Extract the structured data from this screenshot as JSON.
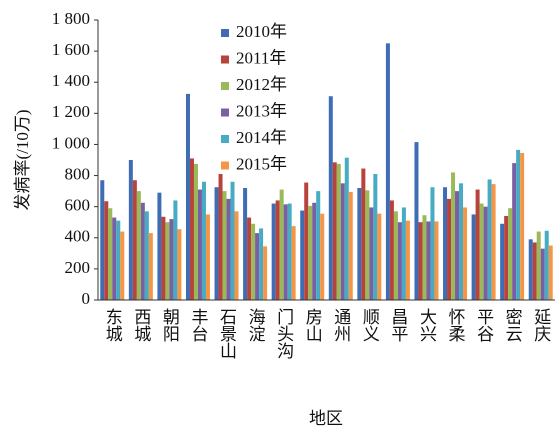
{
  "chart_data": {
    "type": "bar",
    "x_label": "地区",
    "y_label": "发病率(/10万)",
    "categories": [
      "东城",
      "西城",
      "朝阳",
      "丰台",
      "石景山",
      "海淀",
      "门头沟",
      "房山",
      "通州",
      "顺义",
      "昌平",
      "大兴",
      "怀柔",
      "平谷",
      "密云",
      "延庆"
    ],
    "series": [
      {
        "name": "2010年",
        "color": "#3f6db3",
        "values": [
          770,
          900,
          690,
          1325,
          725,
          720,
          620,
          575,
          1310,
          720,
          1650,
          1015,
          725,
          550,
          490,
          390
        ]
      },
      {
        "name": "2011年",
        "color": "#b8423c",
        "values": [
          635,
          770,
          535,
          910,
          810,
          530,
          640,
          755,
          885,
          845,
          640,
          500,
          650,
          710,
          540,
          370
        ]
      },
      {
        "name": "2012年",
        "color": "#9aba58",
        "values": [
          590,
          700,
          500,
          875,
          700,
          490,
          710,
          605,
          875,
          705,
          570,
          545,
          820,
          620,
          590,
          440
        ]
      },
      {
        "name": "2013年",
        "color": "#7a5fa3",
        "values": [
          530,
          625,
          520,
          710,
          650,
          430,
          615,
          625,
          750,
          595,
          500,
          505,
          700,
          600,
          880,
          330
        ]
      },
      {
        "name": "2014年",
        "color": "#47abc4",
        "values": [
          510,
          570,
          640,
          760,
          760,
          460,
          620,
          700,
          915,
          810,
          595,
          725,
          750,
          775,
          965,
          445
        ]
      },
      {
        "name": "2015年",
        "color": "#f59646",
        "values": [
          440,
          430,
          455,
          550,
          570,
          345,
          475,
          555,
          695,
          555,
          510,
          505,
          595,
          745,
          945,
          350
        ]
      }
    ],
    "ylim": [
      0,
      1800
    ],
    "yticks": [
      0,
      200,
      400,
      600,
      800,
      {
        "value": 1000,
        "label": "1 000"
      },
      {
        "value": 1200,
        "label": "1 200"
      },
      {
        "value": 1400,
        "label": "1 400"
      },
      {
        "value": 1600,
        "label": "1 600"
      },
      {
        "value": 1800,
        "label": "1 800"
      }
    ],
    "grid": false
  }
}
